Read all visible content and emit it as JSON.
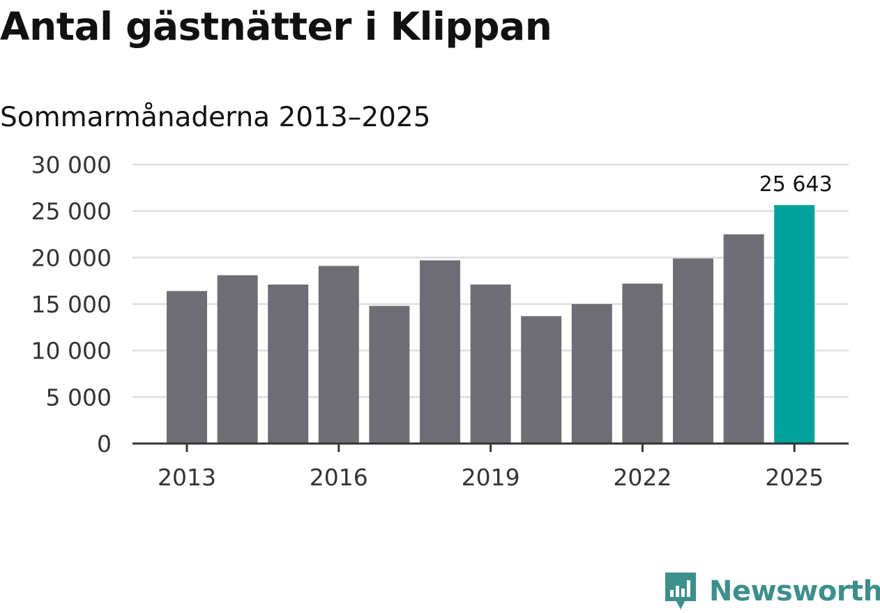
{
  "header": {
    "title": "Antal gästnätter i Klippan",
    "subtitle": "Sommarmånaderna 2013–2025"
  },
  "brand": {
    "name": "Newsworthy",
    "icon": "newsworthy-chart-logo-icon",
    "color": "#3d8f8c"
  },
  "colors": {
    "bar": "#6f6e74",
    "highlight": "#00a39a",
    "grid": "#dddddd",
    "axis": "#333333"
  },
  "chart_data": {
    "type": "bar",
    "categories": [
      "2013",
      "2014",
      "2015",
      "2016",
      "2017",
      "2018",
      "2019",
      "2020",
      "2021",
      "2022",
      "2023",
      "2024",
      "2025"
    ],
    "values": [
      16400,
      18100,
      17100,
      19100,
      14800,
      19700,
      17100,
      13700,
      15000,
      17200,
      19900,
      22500,
      25643
    ],
    "highlight_index": 12,
    "ylim": [
      0,
      30000
    ],
    "yticks": [
      0,
      5000,
      10000,
      15000,
      20000,
      25000,
      30000
    ],
    "ytick_labels": [
      "0",
      "5 000",
      "10 000",
      "15 000",
      "20 000",
      "25 000",
      "30 000"
    ],
    "xtick_labels": [
      "2013",
      "2016",
      "2019",
      "2022",
      "2025"
    ],
    "data_labels": [
      {
        "category": "2025",
        "text": "25 643"
      }
    ],
    "grid": true,
    "legend": false,
    "xlabel": "",
    "ylabel": ""
  }
}
